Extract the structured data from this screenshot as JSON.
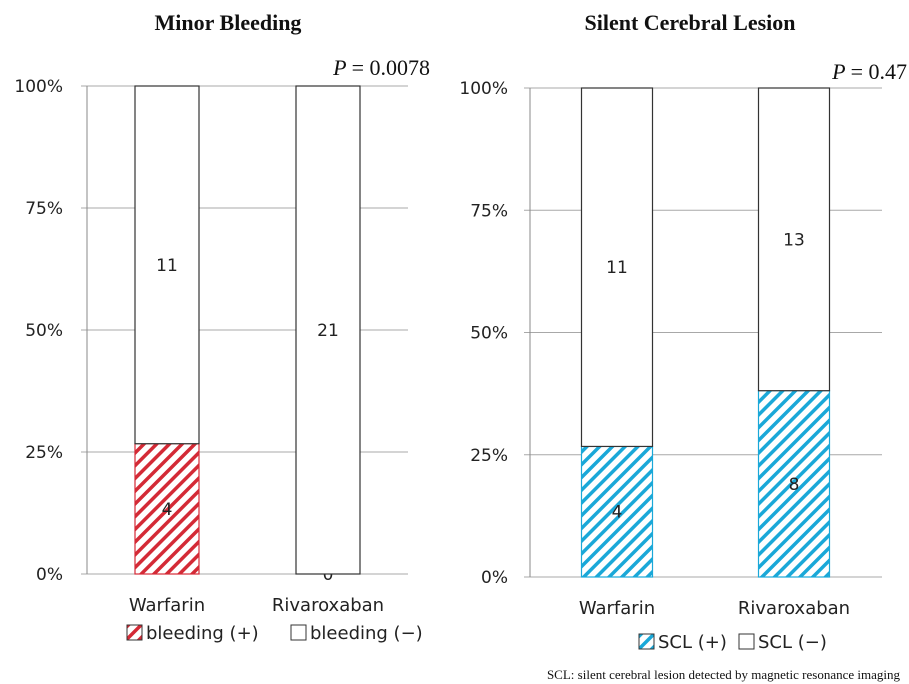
{
  "chart_data": [
    {
      "type": "bar",
      "stacked": true,
      "title": "Minor Bleeding",
      "annotation": {
        "label": "P",
        "text": "= 0.0078"
      },
      "categories": [
        "Warfarin",
        "Rivaroxaban"
      ],
      "yticks": [
        "0%",
        "25%",
        "50%",
        "75%",
        "100%"
      ],
      "ylim": [
        0,
        100
      ],
      "grid": true,
      "series": [
        {
          "name": "bleeding (+)",
          "counts": [
            4,
            0
          ],
          "percent": [
            26.7,
            0
          ],
          "color": "#d42a36",
          "pattern": "hatch"
        },
        {
          "name": "bleeding (−)",
          "counts": [
            11,
            21
          ],
          "percent": [
            73.3,
            100
          ],
          "color": "#ffffff",
          "pattern": "none"
        }
      ],
      "legend_position": "bottom"
    },
    {
      "type": "bar",
      "stacked": true,
      "title": "Silent Cerebral Lesion",
      "annotation": {
        "label": "P",
        "text": "= 0.47"
      },
      "categories": [
        "Warfarin",
        "Rivaroxaban"
      ],
      "yticks": [
        "0%",
        "25%",
        "50%",
        "75%",
        "100%"
      ],
      "ylim": [
        0,
        100
      ],
      "grid": true,
      "series": [
        {
          "name": "SCL (+)",
          "counts": [
            4,
            8
          ],
          "percent": [
            26.7,
            38.1
          ],
          "color": "#1aa8d8",
          "pattern": "hatch"
        },
        {
          "name": "SCL (−)",
          "counts": [
            11,
            13
          ],
          "percent": [
            73.3,
            61.9
          ],
          "color": "#ffffff",
          "pattern": "none"
        }
      ],
      "legend_position": "bottom",
      "footnote": "SCL: silent cerebral lesion detected by magnetic resonance imaging"
    }
  ]
}
